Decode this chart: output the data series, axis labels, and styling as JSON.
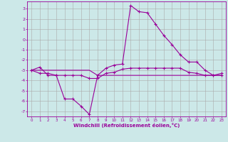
{
  "xlabel": "Windchill (Refroidissement éolien,°C)",
  "background_color": "#cce8e8",
  "grid_color": "#aaaaaa",
  "line_color": "#990099",
  "xlim": [
    -0.5,
    23.5
  ],
  "ylim": [
    -7.5,
    3.7
  ],
  "yticks": [
    3,
    2,
    1,
    0,
    -1,
    -2,
    -3,
    -4,
    -5,
    -6,
    -7
  ],
  "xticks": [
    0,
    1,
    2,
    3,
    4,
    5,
    6,
    7,
    8,
    9,
    10,
    11,
    12,
    13,
    14,
    15,
    16,
    17,
    18,
    19,
    20,
    21,
    22,
    23
  ],
  "series1_x": [
    0,
    1,
    2,
    3,
    4,
    5,
    6,
    7,
    8,
    9,
    10,
    11,
    12,
    13,
    14,
    15,
    16,
    17,
    18,
    19,
    20,
    21,
    22,
    23
  ],
  "series1_y": [
    -3.0,
    -2.7,
    -3.5,
    -3.5,
    -5.8,
    -5.8,
    -6.5,
    -7.3,
    -3.5,
    -2.8,
    -2.5,
    -2.4,
    3.3,
    2.7,
    2.6,
    1.5,
    0.4,
    -0.5,
    -1.5,
    -2.2,
    -2.2,
    -3.0,
    -3.5,
    -3.3
  ],
  "series2_x": [
    0,
    1,
    2,
    3,
    4,
    5,
    6,
    7,
    8,
    9,
    10,
    11,
    12,
    13,
    14,
    15,
    16,
    17,
    18,
    19,
    20,
    21,
    22,
    23
  ],
  "series2_y": [
    -3.0,
    -3.3,
    -3.3,
    -3.5,
    -3.5,
    -3.5,
    -3.5,
    -3.8,
    -3.8,
    -3.3,
    -3.2,
    -2.9,
    -2.8,
    -2.8,
    -2.8,
    -2.8,
    -2.8,
    -2.8,
    -2.8,
    -3.2,
    -3.3,
    -3.5,
    -3.5,
    -3.5
  ],
  "series3_x": [
    0,
    1,
    2,
    3,
    4,
    5,
    6,
    7,
    8,
    9,
    10,
    11,
    12,
    13,
    14,
    15,
    16,
    17,
    18,
    19,
    20,
    21,
    22,
    23
  ],
  "series3_y": [
    -3.0,
    -3.0,
    -3.0,
    -3.0,
    -3.0,
    -3.0,
    -3.0,
    -3.0,
    -3.5,
    -3.5,
    -3.5,
    -3.5,
    -3.5,
    -3.5,
    -3.5,
    -3.5,
    -3.5,
    -3.5,
    -3.5,
    -3.5,
    -3.5,
    -3.5,
    -3.5,
    -3.5
  ]
}
